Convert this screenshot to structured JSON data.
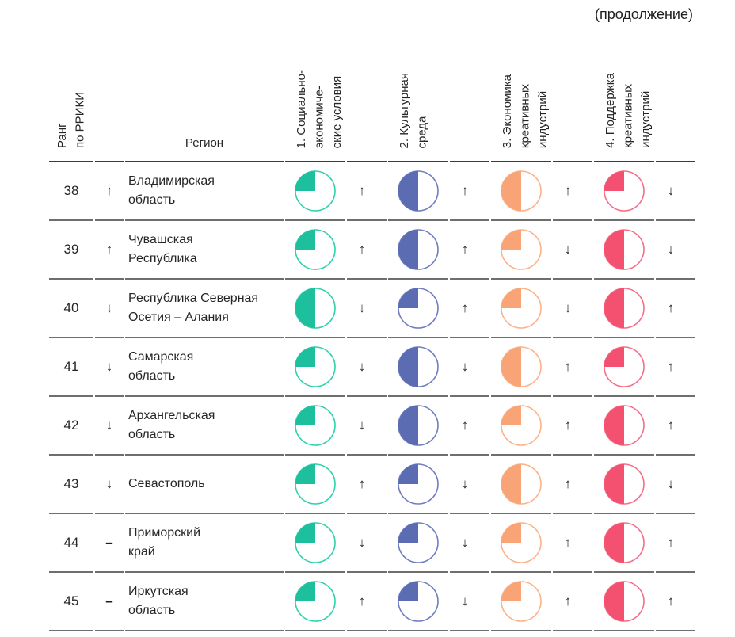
{
  "page": {
    "continuation_label": "(продолжение)"
  },
  "table": {
    "headers": {
      "rank": "Ранг\nпо РРИКИ",
      "region": "Регион",
      "factors": [
        {
          "label": "1. Социально-\nэкономиче-\nские условия",
          "fill_color": "#1ebf9d",
          "stroke_color": "#2fd0aa"
        },
        {
          "label": "2. Культурная\nсреда",
          "fill_color": "#5c6cb2",
          "stroke_color": "#6e7dc0"
        },
        {
          "label": "3. Экономика\nкреативных\nиндустрий",
          "fill_color": "#f9a476",
          "stroke_color": "#fbb289"
        },
        {
          "label": "4. Поддержка\nкреативных\nиндустрий",
          "fill_color": "#f4506f",
          "stroke_color": "#f76d88"
        }
      ]
    },
    "rows": [
      {
        "rank": "38",
        "rank_trend": "↑",
        "region": "Владимирская\nобласть",
        "factors": [
          {
            "share": 0.25,
            "trend": "↑"
          },
          {
            "share": 0.5,
            "trend": "↑"
          },
          {
            "share": 0.5,
            "trend": "↑"
          },
          {
            "share": 0.25,
            "trend": "↓"
          }
        ]
      },
      {
        "rank": "39",
        "rank_trend": "↑",
        "region": "Чувашская\nРеспублика",
        "factors": [
          {
            "share": 0.25,
            "trend": "↑"
          },
          {
            "share": 0.5,
            "trend": "↑"
          },
          {
            "share": 0.25,
            "trend": "↓"
          },
          {
            "share": 0.5,
            "trend": "↓"
          }
        ]
      },
      {
        "rank": "40",
        "rank_trend": "↓",
        "region": "Республика Северная\nОсетия – Алания",
        "factors": [
          {
            "share": 0.5,
            "trend": "↓"
          },
          {
            "share": 0.25,
            "trend": "↑"
          },
          {
            "share": 0.25,
            "trend": "↓"
          },
          {
            "share": 0.5,
            "trend": "↑"
          }
        ]
      },
      {
        "rank": "41",
        "rank_trend": "↓",
        "region": "Самарская\nобласть",
        "factors": [
          {
            "share": 0.25,
            "trend": "↓"
          },
          {
            "share": 0.5,
            "trend": "↓"
          },
          {
            "share": 0.5,
            "trend": "↑"
          },
          {
            "share": 0.25,
            "trend": "↑"
          }
        ]
      },
      {
        "rank": "42",
        "rank_trend": "↓",
        "region": "Архангельская\nобласть",
        "factors": [
          {
            "share": 0.25,
            "trend": "↓"
          },
          {
            "share": 0.5,
            "trend": "↑"
          },
          {
            "share": 0.25,
            "trend": "↑"
          },
          {
            "share": 0.5,
            "trend": "↑"
          }
        ]
      },
      {
        "rank": "43",
        "rank_trend": "↓",
        "region": "Севастополь",
        "factors": [
          {
            "share": 0.25,
            "trend": "↑"
          },
          {
            "share": 0.25,
            "trend": "↓"
          },
          {
            "share": 0.5,
            "trend": "↑"
          },
          {
            "share": 0.5,
            "trend": "↓"
          }
        ]
      },
      {
        "rank": "44",
        "rank_trend": "–",
        "region": "Приморский\nкрай",
        "factors": [
          {
            "share": 0.25,
            "trend": "↓"
          },
          {
            "share": 0.25,
            "trend": "↓"
          },
          {
            "share": 0.25,
            "trend": "↑"
          },
          {
            "share": 0.5,
            "trend": "↑"
          }
        ]
      },
      {
        "rank": "45",
        "rank_trend": "–",
        "region": "Иркутская\nобласть",
        "factors": [
          {
            "share": 0.25,
            "trend": "↑"
          },
          {
            "share": 0.25,
            "trend": "↓"
          },
          {
            "share": 0.25,
            "trend": "↑"
          },
          {
            "share": 0.5,
            "trend": "↑"
          }
        ]
      }
    ]
  }
}
